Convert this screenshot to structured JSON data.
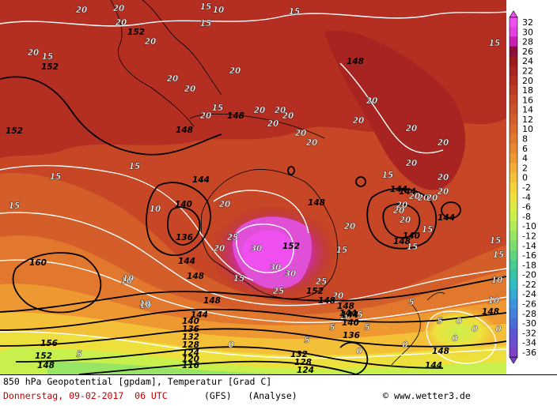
{
  "footer": {
    "title": "850 hPa Geopotential [gpdam], Temperatur [Grad C]",
    "date": "Donnerstag, 09-02-2017  06 UTC",
    "model": "(GFS)   (Analyse)",
    "credit": "© www.wetter3.de"
  },
  "legend": {
    "values": [
      32,
      30,
      28,
      26,
      24,
      22,
      20,
      18,
      16,
      14,
      12,
      10,
      8,
      6,
      4,
      2,
      0,
      -2,
      -4,
      -6,
      -8,
      -10,
      -12,
      -14,
      -16,
      -18,
      -20,
      -22,
      -24,
      -26,
      -28,
      -30,
      -32,
      -34,
      -36
    ],
    "colors": [
      "#ef4fef",
      "#e43fe0",
      "#c81fb4",
      "#8c0f38",
      "#9c1a1a",
      "#a82420",
      "#b42e22",
      "#bd3a24",
      "#c64626",
      "#cc5228",
      "#d45e2a",
      "#dc6a2c",
      "#e2782e",
      "#e88830",
      "#ee9832",
      "#f4ac34",
      "#f4c038",
      "#f4d23a",
      "#eee03c",
      "#dcec44",
      "#c8f04c",
      "#b0ec58",
      "#98e464",
      "#7cdc70",
      "#60d480",
      "#48cc92",
      "#38c4a8",
      "#30bcc0",
      "#34aad4",
      "#3c94dc",
      "#4480dc",
      "#4c6cd8",
      "#5c58d4",
      "#6c4cd0",
      "#7c40c8"
    ]
  },
  "contour_labels": {
    "temperature": [
      {
        "t": "20",
        "k": "t"
      },
      {
        "t": "20",
        "k": "t"
      },
      {
        "t": "20",
        "k": "t"
      },
      {
        "t": "20",
        "k": "t"
      },
      {
        "t": "10",
        "k": "t"
      },
      {
        "t": "15",
        "k": "t"
      },
      {
        "t": "20",
        "k": "t"
      },
      {
        "t": "20",
        "k": "t"
      },
      {
        "t": "15",
        "k": "t"
      },
      {
        "t": "15",
        "k": "t"
      },
      {
        "t": "20",
        "k": "t"
      },
      {
        "t": "15",
        "k": "t"
      },
      {
        "t": "20",
        "k": "t"
      },
      {
        "t": "20",
        "k": "t"
      },
      {
        "t": "20",
        "k": "t"
      },
      {
        "t": "20",
        "k": "t"
      },
      {
        "t": "20",
        "k": "t"
      },
      {
        "t": "20",
        "k": "t"
      },
      {
        "t": "20",
        "k": "t"
      },
      {
        "t": "20",
        "k": "t"
      },
      {
        "t": "20",
        "k": "t"
      },
      {
        "t": "20",
        "k": "t"
      },
      {
        "t": "20",
        "k": "t"
      },
      {
        "t": "20",
        "k": "t"
      },
      {
        "t": "20",
        "k": "t"
      },
      {
        "t": "20",
        "k": "t"
      },
      {
        "t": "20",
        "k": "t"
      },
      {
        "t": "20",
        "k": "t"
      },
      {
        "t": "15",
        "k": "t"
      },
      {
        "t": "15",
        "k": "t"
      },
      {
        "t": "15",
        "k": "t"
      },
      {
        "t": "15",
        "k": "t"
      },
      {
        "t": "15",
        "k": "t"
      },
      {
        "t": "15",
        "k": "t"
      },
      {
        "t": "10",
        "k": "t"
      },
      {
        "t": "10",
        "k": "t"
      },
      {
        "t": "10",
        "k": "t"
      },
      {
        "t": "20",
        "k": "t"
      },
      {
        "t": "25",
        "k": "t"
      },
      {
        "t": "30",
        "k": "t"
      },
      {
        "t": "20",
        "k": "t"
      },
      {
        "t": "30",
        "k": "t"
      },
      {
        "t": "30",
        "k": "t"
      },
      {
        "t": "25",
        "k": "t"
      },
      {
        "t": "25",
        "k": "t"
      },
      {
        "t": "15",
        "k": "t"
      },
      {
        "t": "20",
        "k": "t"
      },
      {
        "t": "20",
        "k": "t"
      },
      {
        "t": "15",
        "k": "t"
      },
      {
        "t": "15",
        "k": "t"
      },
      {
        "t": "20",
        "k": "t"
      },
      {
        "t": "20",
        "k": "t"
      },
      {
        "t": "20",
        "k": "t"
      },
      {
        "t": "20",
        "k": "t"
      },
      {
        "t": "20",
        "k": "t"
      },
      {
        "t": "15",
        "k": "t"
      },
      {
        "t": "15",
        "k": "t"
      },
      {
        "t": "10",
        "k": "t"
      },
      {
        "t": "10",
        "k": "t"
      },
      {
        "t": "10",
        "k": "t"
      },
      {
        "t": "5",
        "k": "t"
      },
      {
        "t": "5",
        "k": "t"
      },
      {
        "t": "5",
        "k": "t"
      },
      {
        "t": "5",
        "k": "t"
      },
      {
        "t": "0",
        "k": "t"
      },
      {
        "t": "0",
        "k": "t"
      },
      {
        "t": "0",
        "k": "t"
      },
      {
        "t": "0",
        "k": "t"
      },
      {
        "t": "10",
        "k": "t"
      },
      {
        "t": "10",
        "k": "t"
      },
      {
        "t": "15",
        "k": "t"
      },
      {
        "t": "0",
        "k": "t"
      },
      {
        "t": "5",
        "k": "t"
      },
      {
        "t": "5",
        "k": "t"
      },
      {
        "t": "5",
        "k": "t"
      },
      {
        "t": "0",
        "k": "t"
      },
      {
        "t": "0",
        "k": "t"
      }
    ],
    "geopotential": [
      {
        "t": "152",
        "k": "g"
      },
      {
        "t": "152",
        "k": "g"
      },
      {
        "t": "152",
        "k": "g"
      },
      {
        "t": "148",
        "k": "g"
      },
      {
        "t": "148",
        "k": "g"
      },
      {
        "t": "140",
        "k": "g"
      },
      {
        "t": "136",
        "k": "g"
      },
      {
        "t": "144",
        "k": "g"
      },
      {
        "t": "144",
        "k": "g"
      },
      {
        "t": "148",
        "k": "g"
      },
      {
        "t": "148",
        "k": "g"
      },
      {
        "t": "152",
        "k": "g"
      },
      {
        "t": "152",
        "k": "g"
      },
      {
        "t": "148",
        "k": "g"
      },
      {
        "t": "148",
        "k": "g"
      },
      {
        "t": "148",
        "k": "g"
      },
      {
        "t": "144",
        "k": "g"
      },
      {
        "t": "144",
        "k": "g"
      },
      {
        "t": "140",
        "k": "g"
      },
      {
        "t": "144",
        "k": "g"
      },
      {
        "t": "144",
        "k": "g"
      },
      {
        "t": "148",
        "k": "g"
      },
      {
        "t": "160",
        "k": "g"
      },
      {
        "t": "156",
        "k": "g"
      },
      {
        "t": "152",
        "k": "g"
      },
      {
        "t": "148",
        "k": "g"
      },
      {
        "t": "148",
        "k": "g"
      },
      {
        "t": "144",
        "k": "g"
      },
      {
        "t": "140",
        "k": "g"
      },
      {
        "t": "136",
        "k": "g"
      },
      {
        "t": "132",
        "k": "g"
      },
      {
        "t": "128",
        "k": "g"
      },
      {
        "t": "124",
        "k": "g"
      },
      {
        "t": "120",
        "k": "g"
      },
      {
        "t": "116",
        "k": "g"
      },
      {
        "t": "132",
        "k": "g"
      },
      {
        "t": "128",
        "k": "g"
      },
      {
        "t": "124",
        "k": "g"
      },
      {
        "t": "136",
        "k": "g"
      },
      {
        "t": "140",
        "k": "g"
      },
      {
        "t": "144",
        "k": "g"
      },
      {
        "t": "148",
        "k": "g"
      },
      {
        "t": "148",
        "k": "g"
      },
      {
        "t": "144",
        "k": "g"
      }
    ]
  }
}
